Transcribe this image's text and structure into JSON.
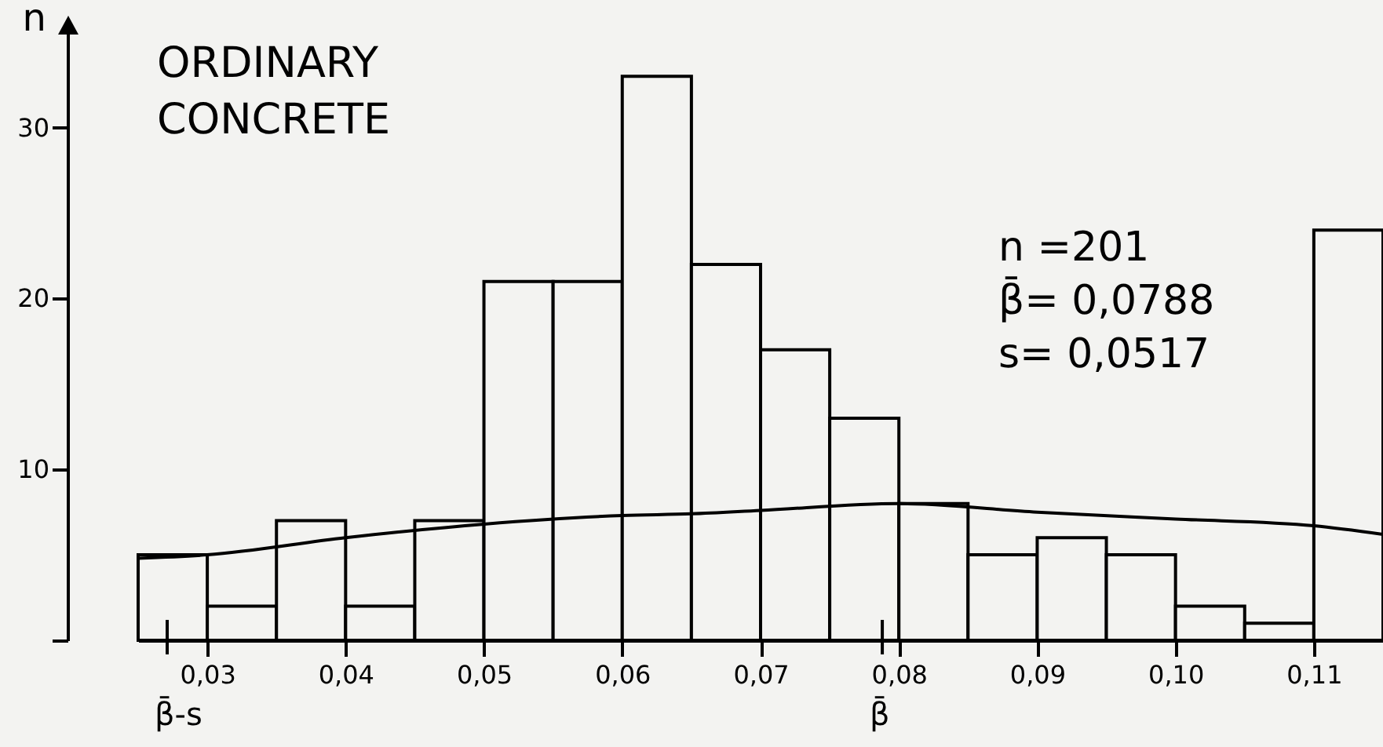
{
  "chart_data": {
    "type": "histogram",
    "title": "ORDINARY CONCRETE",
    "ylabel": "n",
    "bins": [
      0.025,
      0.03,
      0.035,
      0.04,
      0.045,
      0.05,
      0.055,
      0.06,
      0.065,
      0.07,
      0.075,
      0.08,
      0.085,
      0.09,
      0.095,
      0.1,
      0.105,
      0.11,
      0.115
    ],
    "values": [
      5,
      2,
      7,
      2,
      7,
      21,
      21,
      33,
      22,
      17,
      13,
      8,
      5,
      6,
      5,
      2,
      1,
      24
    ],
    "color": "#000000",
    "series": [
      {
        "type": "line",
        "color": "#000000",
        "x": [
          0.025,
          0.03,
          0.04,
          0.05,
          0.06,
          0.065,
          0.07,
          0.08,
          0.09,
          0.1,
          0.11,
          0.115
        ],
        "values": [
          4.8,
          5.0,
          6.0,
          6.8,
          7.3,
          7.4,
          7.6,
          8.0,
          7.5,
          7.1,
          6.7,
          6.2
        ]
      }
    ],
    "xlim": [
      0.025,
      0.115
    ],
    "ylim": [
      0,
      36
    ],
    "xticks": [
      {
        "value": 0.03,
        "label": "0,03"
      },
      {
        "value": 0.04,
        "label": "0,04"
      },
      {
        "value": 0.05,
        "label": "0,05"
      },
      {
        "value": 0.06,
        "label": "0,06"
      },
      {
        "value": 0.07,
        "label": "0,07"
      },
      {
        "value": 0.08,
        "label": "0,08"
      },
      {
        "value": 0.09,
        "label": "0,09"
      },
      {
        "value": 0.1,
        "label": "0,10"
      },
      {
        "value": 0.11,
        "label": "0,11"
      }
    ],
    "yticks": [
      {
        "value": 0,
        "label": null
      },
      10,
      20,
      30
    ],
    "annotations": [
      "n =201",
      "β̄= 0,0788",
      "s= 0,0517",
      {
        "text": "β̄-s",
        "x": 0.0271,
        "y": 0
      },
      {
        "text": "β̄",
        "x": 0.0788,
        "y": 0
      }
    ]
  }
}
